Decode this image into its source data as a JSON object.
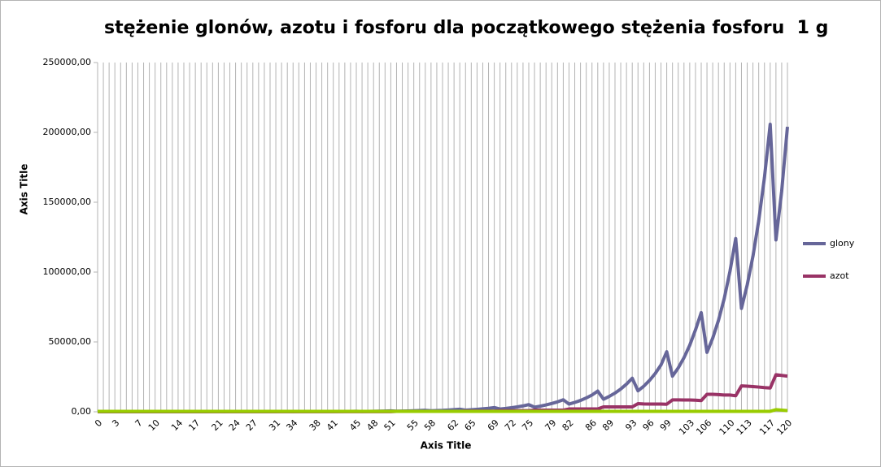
{
  "chart_data": {
    "type": "line",
    "title": "stężenie glonów, azotu i fosforu dla początkowego stężenia fosforu  1 g",
    "x_label": "Axis Title",
    "y_label": "Axis Title",
    "categories": [
      "0",
      null,
      null,
      "3",
      null,
      null,
      null,
      "7",
      null,
      null,
      "10",
      null,
      null,
      null,
      "14",
      null,
      null,
      "17",
      null,
      null,
      null,
      "21",
      null,
      null,
      "24",
      null,
      null,
      "27",
      null,
      null,
      null,
      "31",
      null,
      null,
      "34",
      null,
      null,
      null,
      "38",
      null,
      null,
      "41",
      null,
      null,
      null,
      "45",
      null,
      null,
      "48",
      null,
      null,
      "51",
      null,
      null,
      null,
      "55",
      null,
      null,
      "58",
      null,
      null,
      null,
      "62",
      null,
      null,
      "65",
      null,
      null,
      null,
      "69",
      null,
      null,
      "72",
      null,
      null,
      "75",
      null,
      null,
      null,
      "79",
      null,
      null,
      "82",
      null,
      null,
      null,
      "86",
      null,
      null,
      "89",
      null,
      null,
      null,
      "93",
      null,
      null,
      "96",
      null,
      null,
      "99",
      null,
      null,
      null,
      "103",
      null,
      null,
      "106",
      null,
      null,
      null,
      "110",
      null,
      null,
      "113",
      null,
      null,
      null,
      "117",
      null,
      null,
      "120"
    ],
    "series": [
      {
        "name": "glony",
        "color": "#666699",
        "values": [
          5,
          5,
          6,
          7,
          6,
          8,
          9,
          11,
          13,
          16,
          11,
          13,
          16,
          19,
          22,
          28,
          18,
          22,
          27,
          32,
          38,
          47,
          30,
          38,
          45,
          55,
          65,
          80,
          55,
          65,
          75,
          90,
          110,
          130,
          90,
          110,
          130,
          150,
          180,
          220,
          150,
          180,
          210,
          255,
          310,
          370,
          250,
          300,
          360,
          430,
          520,
          620,
          420,
          500,
          600,
          730,
          880,
          1060,
          700,
          850,
          1000,
          1250,
          1500,
          1800,
          1200,
          1450,
          1750,
          2100,
          2500,
          3000,
          2000,
          2400,
          2900,
          3500,
          4200,
          5100,
          3300,
          4000,
          4900,
          5900,
          7100,
          8600,
          5500,
          6700,
          8100,
          9900,
          12000,
          14800,
          9000,
          11000,
          13400,
          16300,
          19800,
          24000,
          15000,
          18300,
          22400,
          27400,
          33500,
          43000,
          25500,
          31400,
          38700,
          47600,
          58600,
          71000,
          42500,
          52700,
          65400,
          81000,
          100500,
          124000,
          74000,
          90800,
          111400,
          136700,
          167700,
          205800,
          123000,
          158000,
          204000
        ]
      },
      {
        "name": "azot",
        "color": "#993366",
        "values": [
          50,
          50,
          50,
          50,
          50,
          50,
          50,
          50,
          50,
          50,
          50,
          50,
          50,
          50,
          50,
          50,
          50,
          50,
          50,
          50,
          50,
          50,
          50,
          50,
          50,
          50,
          50,
          50,
          50,
          50,
          50,
          50,
          50,
          50,
          50,
          50,
          50,
          50,
          50,
          50,
          50,
          50,
          50,
          50,
          50,
          50,
          50,
          50,
          50,
          50,
          50,
          50,
          300,
          300,
          300,
          300,
          300,
          300,
          300,
          300,
          300,
          300,
          300,
          300,
          500,
          500,
          500,
          500,
          500,
          500,
          800,
          800,
          800,
          800,
          800,
          800,
          1200,
          1200,
          1200,
          1200,
          1200,
          1200,
          2000,
          2000,
          2000,
          2000,
          2000,
          2000,
          3500,
          3500,
          3500,
          3500,
          3500,
          3500,
          5800,
          5600,
          5500,
          5500,
          5500,
          5400,
          8500,
          8500,
          8400,
          8400,
          8300,
          8000,
          12500,
          12500,
          12300,
          12000,
          12000,
          11500,
          18500,
          18300,
          18000,
          17700,
          17300,
          17000,
          26500,
          26000,
          25500
        ]
      },
      {
        "color": "#99cc00",
        "values": [
          300,
          300,
          300,
          300,
          300,
          300,
          300,
          300,
          300,
          300,
          300,
          300,
          300,
          300,
          300,
          300,
          300,
          300,
          300,
          300,
          300,
          300,
          300,
          300,
          300,
          300,
          300,
          300,
          300,
          300,
          300,
          300,
          300,
          300,
          300,
          300,
          300,
          300,
          300,
          300,
          300,
          300,
          300,
          300,
          300,
          300,
          300,
          300,
          300,
          300,
          300,
          300,
          300,
          300,
          300,
          300,
          300,
          300,
          300,
          300,
          300,
          300,
          300,
          300,
          300,
          300,
          300,
          300,
          300,
          300,
          300,
          300,
          300,
          300,
          300,
          300,
          300,
          300,
          300,
          300,
          300,
          300,
          300,
          300,
          300,
          300,
          300,
          300,
          300,
          300,
          300,
          300,
          300,
          300,
          300,
          300,
          300,
          300,
          300,
          300,
          300,
          300,
          300,
          300,
          300,
          300,
          300,
          300,
          300,
          300,
          300,
          300,
          300,
          300,
          300,
          300,
          300,
          300,
          1500,
          1200,
          800
        ]
      }
    ],
    "ylim": [
      0,
      250000
    ],
    "yticks": [
      {
        "value": 0,
        "label": "0,00"
      },
      {
        "value": 50000,
        "label": "50000,00"
      },
      {
        "value": 100000,
        "label": "100000,00"
      },
      {
        "value": 150000,
        "label": "150000,00"
      },
      {
        "value": 200000,
        "label": "200000,00"
      },
      {
        "value": 250000,
        "label": "250000,00"
      }
    ],
    "grid": true,
    "legend": "right"
  }
}
